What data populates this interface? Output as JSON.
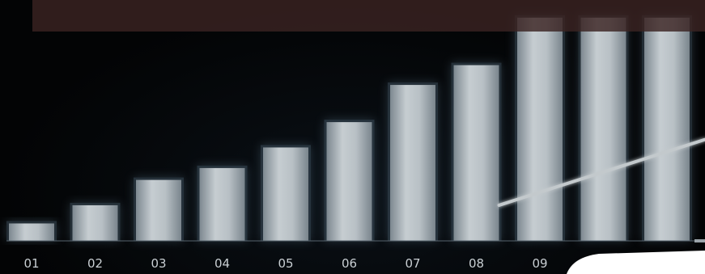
{
  "chart_data": {
    "type": "bar",
    "title": "",
    "xlabel": "",
    "ylabel": "",
    "categories": [
      "01",
      "02",
      "03",
      "04",
      "05",
      "06",
      "07",
      "08",
      "09",
      "",
      ""
    ],
    "values": [
      22,
      45,
      77,
      92,
      118,
      150,
      197,
      222,
      282,
      282,
      282
    ],
    "ylim": [
      0,
      290
    ],
    "trend_line": {
      "x_range": [
        "08",
        "beyond last bar"
      ],
      "y_range": [
        45,
        128
      ]
    },
    "grid": false,
    "legend": "none"
  },
  "colors": {
    "background": "#030405",
    "bar_fill": "#a9b2b8",
    "bar_glow": "#5f7a8e",
    "top_band": "#3a2322",
    "trend_line": "#c3c9cc",
    "axis_line": "#56636d",
    "tick_text": "#c9cfd3",
    "corner_shape": "#ffffff"
  }
}
